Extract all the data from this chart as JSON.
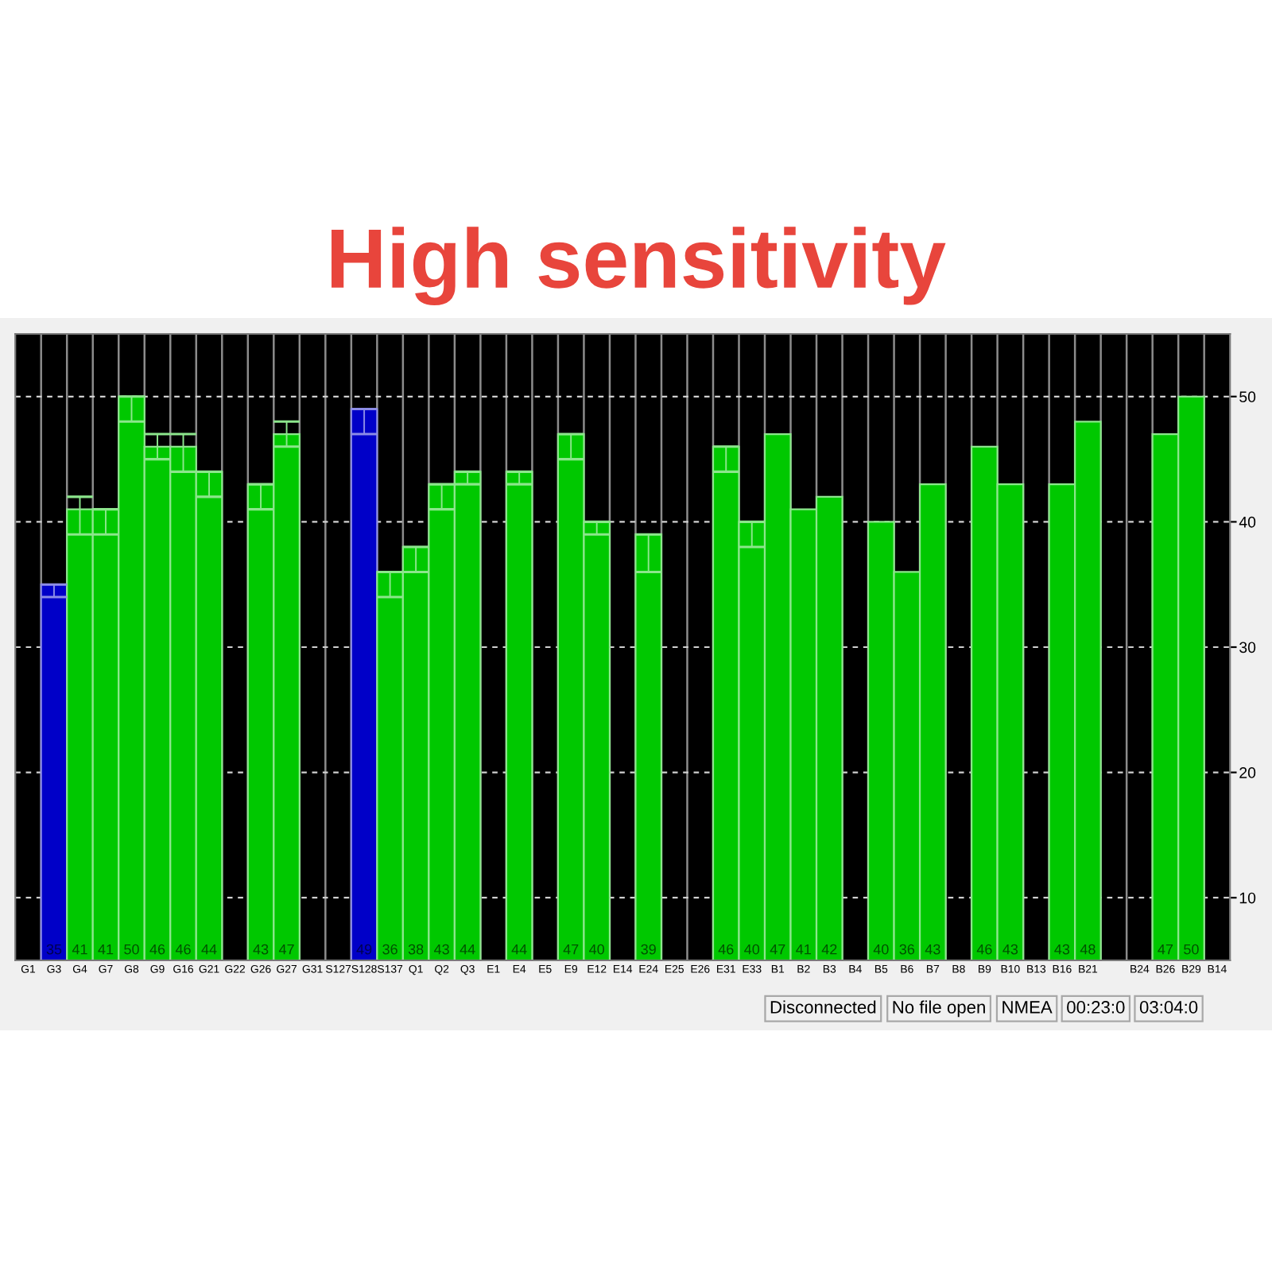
{
  "chart_data": {
    "type": "bar",
    "title": "High sensitivity",
    "categories": [
      "G1",
      "G3",
      "G4",
      "G7",
      "G8",
      "G9",
      "G16",
      "G21",
      "G22",
      "G26",
      "G27",
      "G31",
      "S127",
      "S128",
      "S137",
      "Q1",
      "Q2",
      "Q3",
      "E1",
      "E4",
      "E5",
      "E9",
      "E12",
      "E14",
      "E24",
      "E25",
      "E26",
      "E31",
      "E33",
      "B1",
      "B2",
      "B3",
      "B4",
      "B5",
      "B6",
      "B7",
      "B8",
      "B9",
      "B10",
      "B13",
      "B16",
      "B21",
      null,
      "B24",
      "B26",
      "B29",
      "B14"
    ],
    "values": [
      null,
      35,
      41,
      41,
      50,
      46,
      46,
      44,
      null,
      43,
      47,
      null,
      null,
      49,
      36,
      38,
      43,
      44,
      null,
      44,
      null,
      47,
      40,
      null,
      39,
      null,
      null,
      46,
      40,
      47,
      41,
      42,
      null,
      40,
      36,
      43,
      null,
      46,
      43,
      null,
      43,
      48,
      null,
      null,
      47,
      50,
      null
    ],
    "colors": [
      "#00c800",
      "#0000c8",
      "#00c800",
      "#00c800",
      "#00c800",
      "#00c800",
      "#00c800",
      "#00c800",
      "#00c800",
      "#00c800",
      "#00c800",
      "#00c800",
      "#00c800",
      "#0000c8",
      "#00c800",
      "#00c800",
      "#00c800",
      "#00c800",
      "#00c800",
      "#00c800",
      "#00c800",
      "#00c800",
      "#00c800",
      "#00c800",
      "#00c800",
      "#00c800",
      "#00c800",
      "#00c800",
      "#00c800",
      "#00c800",
      "#00c800",
      "#00c800",
      "#00c800",
      "#00c800",
      "#00c800",
      "#00c800",
      "#00c800",
      "#00c800",
      "#00c800",
      "#00c800",
      "#00c800",
      "#00c800",
      "#00c800",
      "#00c800",
      "#00c800",
      "#00c800",
      "#00c800"
    ],
    "errors": [
      null,
      [
        34,
        35
      ],
      [
        39,
        42
      ],
      [
        39,
        41
      ],
      [
        48,
        50
      ],
      [
        45,
        47
      ],
      [
        44,
        47
      ],
      [
        42,
        44
      ],
      null,
      [
        41,
        43
      ],
      [
        46,
        48
      ],
      null,
      null,
      [
        47,
        49
      ],
      [
        34,
        36
      ],
      [
        36,
        38
      ],
      [
        41,
        43
      ],
      [
        43,
        44
      ],
      null,
      [
        43,
        44
      ],
      null,
      [
        45,
        47
      ],
      [
        39,
        40
      ],
      null,
      [
        36,
        39
      ],
      null,
      null,
      [
        44,
        46
      ],
      [
        38,
        40
      ],
      null,
      null,
      null,
      null,
      null,
      null,
      null,
      null,
      null,
      null,
      null,
      null,
      null,
      null,
      null,
      null,
      null,
      null
    ],
    "data_labels": true,
    "ylim": [
      5,
      55
    ],
    "yticks": [
      10,
      20,
      30,
      40,
      50
    ],
    "grid": true,
    "annotations": [
      "Disconnected",
      "No file open",
      "NMEA",
      "00:23:0",
      "03:04:0"
    ]
  }
}
